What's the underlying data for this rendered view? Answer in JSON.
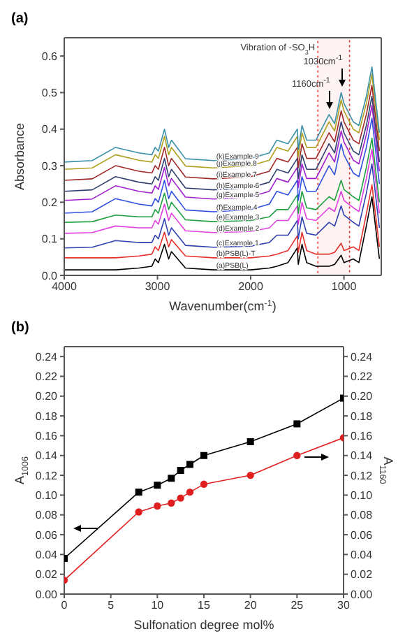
{
  "chart_data": [
    {
      "type": "line",
      "title": "(a)",
      "xlabel": "Wavenumber(cm$^{-1}$)",
      "ylabel": "Absorbance",
      "xlim": [
        4000,
        600
      ],
      "xticks": [
        4000,
        3000,
        2000,
        1000
      ],
      "ylim": [
        0,
        0.65
      ],
      "yticks": [
        {
          "value": 0,
          "label": "0.0"
        },
        {
          "value": 0.1,
          "label": "0.1"
        },
        {
          "value": 0.2,
          "label": "0.2"
        },
        {
          "value": 0.3,
          "label": "0.3"
        },
        {
          "value": 0.4,
          "label": "0.4"
        },
        {
          "value": 0.5,
          "label": "0.5"
        },
        {
          "value": 0.6,
          "label": "0.6"
        }
      ],
      "grid": false,
      "marker": "none",
      "line_style": "solid",
      "x": [
        4000,
        3700,
        3450,
        3200,
        3060,
        3025,
        2990,
        2925,
        2880,
        2850,
        2700,
        2400,
        2000,
        1800,
        1720,
        1600,
        1500,
        1490,
        1450,
        1400,
        1300,
        1160,
        1100,
        1030,
        1000,
        900,
        840,
        760,
        700,
        620
      ],
      "series": [
        {
          "name": "(a)PSB(L)",
          "color": "#000000",
          "values": [
            0.015,
            0.015,
            0.015,
            0.02,
            0.025,
            0.045,
            0.035,
            0.085,
            0.045,
            0.065,
            0.02,
            0.015,
            0.015,
            0.02,
            0.025,
            0.035,
            0.075,
            0.03,
            0.085,
            0.035,
            0.025,
            0.025,
            0.03,
            0.055,
            0.035,
            0.045,
            0.035,
            0.135,
            0.215,
            0.045
          ]
        },
        {
          "name": "(b)PSB(L)-T",
          "color": "#e8302a",
          "values": [
            0.048,
            0.048,
            0.048,
            0.053,
            0.058,
            0.078,
            0.068,
            0.118,
            0.078,
            0.098,
            0.053,
            0.048,
            0.048,
            0.053,
            0.058,
            0.068,
            0.108,
            0.063,
            0.118,
            0.068,
            0.058,
            0.058,
            0.063,
            0.088,
            0.068,
            0.078,
            0.068,
            0.168,
            0.248,
            0.078
          ]
        },
        {
          "name": "(c)Example 1",
          "color": "#2f3fb0",
          "values": [
            0.075,
            0.077,
            0.095,
            0.09,
            0.09,
            0.11,
            0.1,
            0.155,
            0.11,
            0.13,
            0.082,
            0.077,
            0.08,
            0.09,
            0.11,
            0.11,
            0.15,
            0.1,
            0.16,
            0.115,
            0.11,
            0.145,
            0.135,
            0.19,
            0.165,
            0.145,
            0.135,
            0.225,
            0.305,
            0.13
          ]
        },
        {
          "name": "(d)Example 2",
          "color": "#e040e0",
          "values": [
            0.115,
            0.117,
            0.135,
            0.13,
            0.13,
            0.15,
            0.14,
            0.195,
            0.15,
            0.17,
            0.122,
            0.117,
            0.12,
            0.13,
            0.15,
            0.15,
            0.19,
            0.14,
            0.2,
            0.155,
            0.15,
            0.185,
            0.175,
            0.23,
            0.205,
            0.185,
            0.175,
            0.265,
            0.345,
            0.17
          ]
        },
        {
          "name": "(e)Example 3",
          "color": "#20a040",
          "values": [
            0.145,
            0.147,
            0.165,
            0.16,
            0.16,
            0.18,
            0.17,
            0.225,
            0.18,
            0.2,
            0.152,
            0.147,
            0.15,
            0.16,
            0.18,
            0.18,
            0.22,
            0.17,
            0.23,
            0.185,
            0.18,
            0.215,
            0.205,
            0.26,
            0.235,
            0.215,
            0.205,
            0.295,
            0.375,
            0.2
          ]
        },
        {
          "name": "(f)Example 4",
          "color": "#3050e0",
          "values": [
            0.17,
            0.174,
            0.21,
            0.195,
            0.19,
            0.21,
            0.2,
            0.26,
            0.21,
            0.23,
            0.179,
            0.174,
            0.18,
            0.195,
            0.23,
            0.22,
            0.26,
            0.205,
            0.27,
            0.23,
            0.23,
            0.3,
            0.275,
            0.36,
            0.33,
            0.28,
            0.27,
            0.35,
            0.43,
            0.25
          ]
        },
        {
          "name": "(g)Example 5",
          "color": "#a020d0",
          "values": [
            0.205,
            0.209,
            0.245,
            0.23,
            0.225,
            0.245,
            0.235,
            0.295,
            0.245,
            0.265,
            0.214,
            0.209,
            0.215,
            0.23,
            0.265,
            0.255,
            0.295,
            0.24,
            0.305,
            0.265,
            0.265,
            0.335,
            0.31,
            0.395,
            0.365,
            0.315,
            0.305,
            0.385,
            0.465,
            0.285
          ]
        },
        {
          "name": "(h)Example 6",
          "color": "#304070",
          "values": [
            0.23,
            0.234,
            0.27,
            0.255,
            0.25,
            0.27,
            0.26,
            0.32,
            0.27,
            0.29,
            0.239,
            0.234,
            0.24,
            0.255,
            0.29,
            0.28,
            0.32,
            0.265,
            0.33,
            0.29,
            0.29,
            0.36,
            0.335,
            0.42,
            0.39,
            0.34,
            0.33,
            0.41,
            0.49,
            0.31
          ]
        },
        {
          "name": "(i)Example 7",
          "color": "#a02828",
          "values": [
            0.26,
            0.264,
            0.3,
            0.285,
            0.28,
            0.3,
            0.29,
            0.35,
            0.3,
            0.32,
            0.269,
            0.264,
            0.27,
            0.285,
            0.32,
            0.31,
            0.35,
            0.295,
            0.36,
            0.32,
            0.32,
            0.39,
            0.365,
            0.45,
            0.42,
            0.37,
            0.36,
            0.44,
            0.52,
            0.34
          ]
        },
        {
          "name": "(j)Example 8",
          "color": "#b0a020",
          "values": [
            0.29,
            0.294,
            0.33,
            0.315,
            0.31,
            0.33,
            0.32,
            0.38,
            0.33,
            0.35,
            0.299,
            0.294,
            0.3,
            0.315,
            0.35,
            0.34,
            0.38,
            0.325,
            0.39,
            0.35,
            0.35,
            0.42,
            0.395,
            0.48,
            0.45,
            0.4,
            0.39,
            0.47,
            0.55,
            0.37
          ]
        },
        {
          "name": "(k)Example 9",
          "color": "#3a90a8",
          "values": [
            0.31,
            0.314,
            0.35,
            0.335,
            0.33,
            0.35,
            0.34,
            0.4,
            0.35,
            0.37,
            0.319,
            0.314,
            0.32,
            0.335,
            0.37,
            0.36,
            0.4,
            0.345,
            0.41,
            0.37,
            0.37,
            0.44,
            0.415,
            0.5,
            0.47,
            0.42,
            0.41,
            0.49,
            0.57,
            0.39
          ]
        }
      ],
      "bands": [
        {
          "axis": "x",
          "from": 1280,
          "to": 940,
          "label": "Vibration of -SO$_{3}$H",
          "color": "#e03030"
        }
      ],
      "annotations": [
        {
          "text": "1160cm$^{-1}$",
          "x": 1160,
          "y": 0.44
        },
        {
          "text": "1030cm$^{-1}$",
          "x": 1030,
          "y": 0.5
        }
      ]
    },
    {
      "type": "line",
      "title": "(b)",
      "xlabel": "Sulfonation degree mol%",
      "ylabel": "A$_{1006}$",
      "y2label": "A$_{1160}$",
      "xlim": [
        0,
        30
      ],
      "xticks": [
        0,
        5,
        10,
        15,
        20,
        25,
        30
      ],
      "ylim": [
        0,
        0.25
      ],
      "yticks": [
        {
          "value": 0,
          "label": "0.00"
        },
        {
          "value": 0.02,
          "label": "0.02"
        },
        {
          "value": 0.04,
          "label": "0.04"
        },
        {
          "value": 0.06,
          "label": "0.06"
        },
        {
          "value": 0.08,
          "label": "0.08"
        },
        {
          "value": 0.1,
          "label": "0.10"
        },
        {
          "value": 0.12,
          "label": "0.12"
        },
        {
          "value": 0.14,
          "label": "0.14"
        },
        {
          "value": 0.16,
          "label": "0.16"
        },
        {
          "value": 0.18,
          "label": "0.18"
        },
        {
          "value": 0.2,
          "label": "0.20"
        },
        {
          "value": 0.22,
          "label": "0.22"
        },
        {
          "value": 0.24,
          "label": "0.24"
        }
      ],
      "y2lim": [
        0,
        0.25
      ],
      "y2ticks": [
        {
          "value": 0,
          "label": "0.00"
        },
        {
          "value": 0.02,
          "label": "0.02"
        },
        {
          "value": 0.04,
          "label": "0.04"
        },
        {
          "value": 0.06,
          "label": "0.06"
        },
        {
          "value": 0.08,
          "label": "0.08"
        },
        {
          "value": 0.1,
          "label": "0.10"
        },
        {
          "value": 0.12,
          "label": "0.12"
        },
        {
          "value": 0.14,
          "label": "0.14"
        },
        {
          "value": 0.16,
          "label": "0.16"
        },
        {
          "value": 0.18,
          "label": "0.18"
        },
        {
          "value": 0.2,
          "label": "0.20"
        },
        {
          "value": 0.22,
          "label": "0.22"
        },
        {
          "value": 0.24,
          "label": "0.24"
        }
      ],
      "grid": false,
      "line_style": "solid",
      "x": [
        0,
        8,
        10,
        11.5,
        12.5,
        13.5,
        15,
        20,
        25,
        30
      ],
      "series": [
        {
          "color": "#000000",
          "marker": "square",
          "values": [
            0.036,
            0.103,
            0.11,
            0.117,
            0.125,
            0.131,
            0.14,
            0.154,
            0.172,
            0.198
          ]
        },
        {
          "color": "#e02020",
          "marker": "circle",
          "axis": "y2",
          "values": [
            0.014,
            0.083,
            0.089,
            0.092,
            0.097,
            0.103,
            0.111,
            0.12,
            0.14,
            0.158
          ]
        }
      ]
    }
  ]
}
